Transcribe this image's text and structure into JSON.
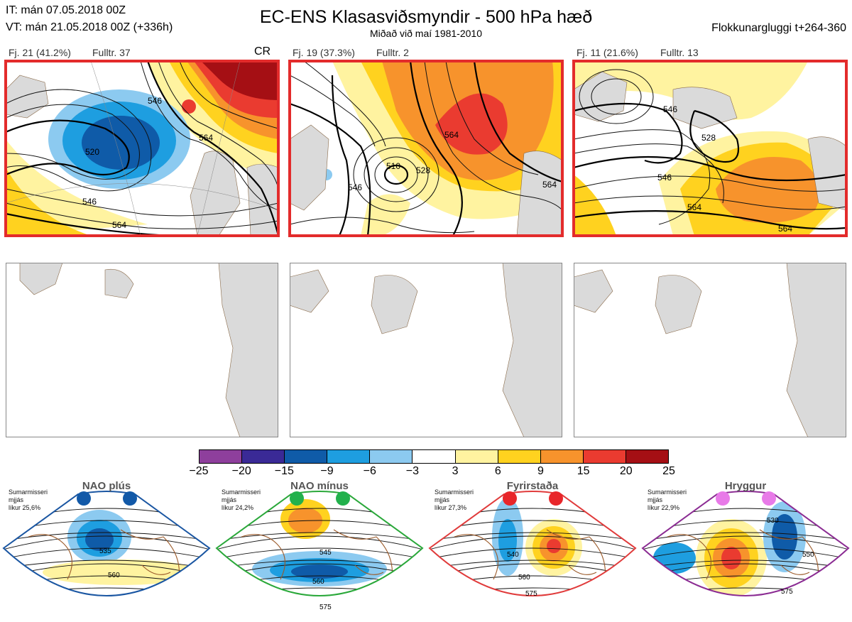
{
  "header": {
    "init_time": "IT: mán 07.05.2018 00Z",
    "valid_time": "VT: mán 21.05.2018 00Z  (+336h)",
    "title": "EC-ENS Klasasviðsmyndir - 500 hPa hæð",
    "subtitle": "Miðað við maí 1981-2010",
    "window": "Flokkunargluggi t+264-360"
  },
  "clusters": [
    {
      "label": "Fj. 21 (41.2%)",
      "member": "Fulltr. 37",
      "tag": "CR",
      "contours": [
        "520",
        "546",
        "564",
        "546",
        "564"
      ]
    },
    {
      "label": "Fj. 19 (37.3%)",
      "member": "Fulltr. 2",
      "tag": "",
      "contours": [
        "510",
        "528",
        "546",
        "564",
        "564"
      ]
    },
    {
      "label": "Fj. 11 (21.6%)",
      "member": "Fulltr. 13",
      "tag": "",
      "contours": [
        "528",
        "546",
        "564",
        "564",
        "546"
      ]
    }
  ],
  "colorbar": {
    "ticks": [
      "−25",
      "−20",
      "−15",
      "−9",
      "−6",
      "−3",
      "3",
      "6",
      "9",
      "15",
      "20",
      "25"
    ],
    "colors": [
      "#8e3f9c",
      "#3a2a96",
      "#0f5ba8",
      "#1e9ee0",
      "#8ccaf0",
      "#ffffff",
      "#fff3a0",
      "#ffd21f",
      "#f7932c",
      "#ea3b30",
      "#a50f14"
    ]
  },
  "regimes": [
    {
      "name": "NAO plús",
      "season": "Sumarmisseri",
      "method": "mjjás",
      "likelihood": "líkur 25,6%",
      "dot_color": "#1259a8",
      "frame_color": "#1a56a2",
      "labels": [
        "535",
        "560"
      ]
    },
    {
      "name": "NAO mínus",
      "season": "Sumarmisseri",
      "method": "mjjás",
      "likelihood": "líkur 24,2%",
      "dot_color": "#22b14c",
      "frame_color": "#2aa83a",
      "labels": [
        "545",
        "560",
        "575"
      ]
    },
    {
      "name": "Fyrirstaða",
      "season": "Sumarmisseri",
      "method": "mjjás",
      "likelihood": "líkur 27,3%",
      "dot_color": "#e8262a",
      "frame_color": "#e03b3b",
      "labels": [
        "540",
        "560",
        "575"
      ]
    },
    {
      "name": "Hryggur",
      "season": "Sumarmisseri",
      "method": "mjjás",
      "likelihood": "líkur 22,9%",
      "dot_color": "#e87ae8",
      "frame_color": "#8b2c93",
      "labels": [
        "530",
        "550",
        "575"
      ]
    }
  ]
}
